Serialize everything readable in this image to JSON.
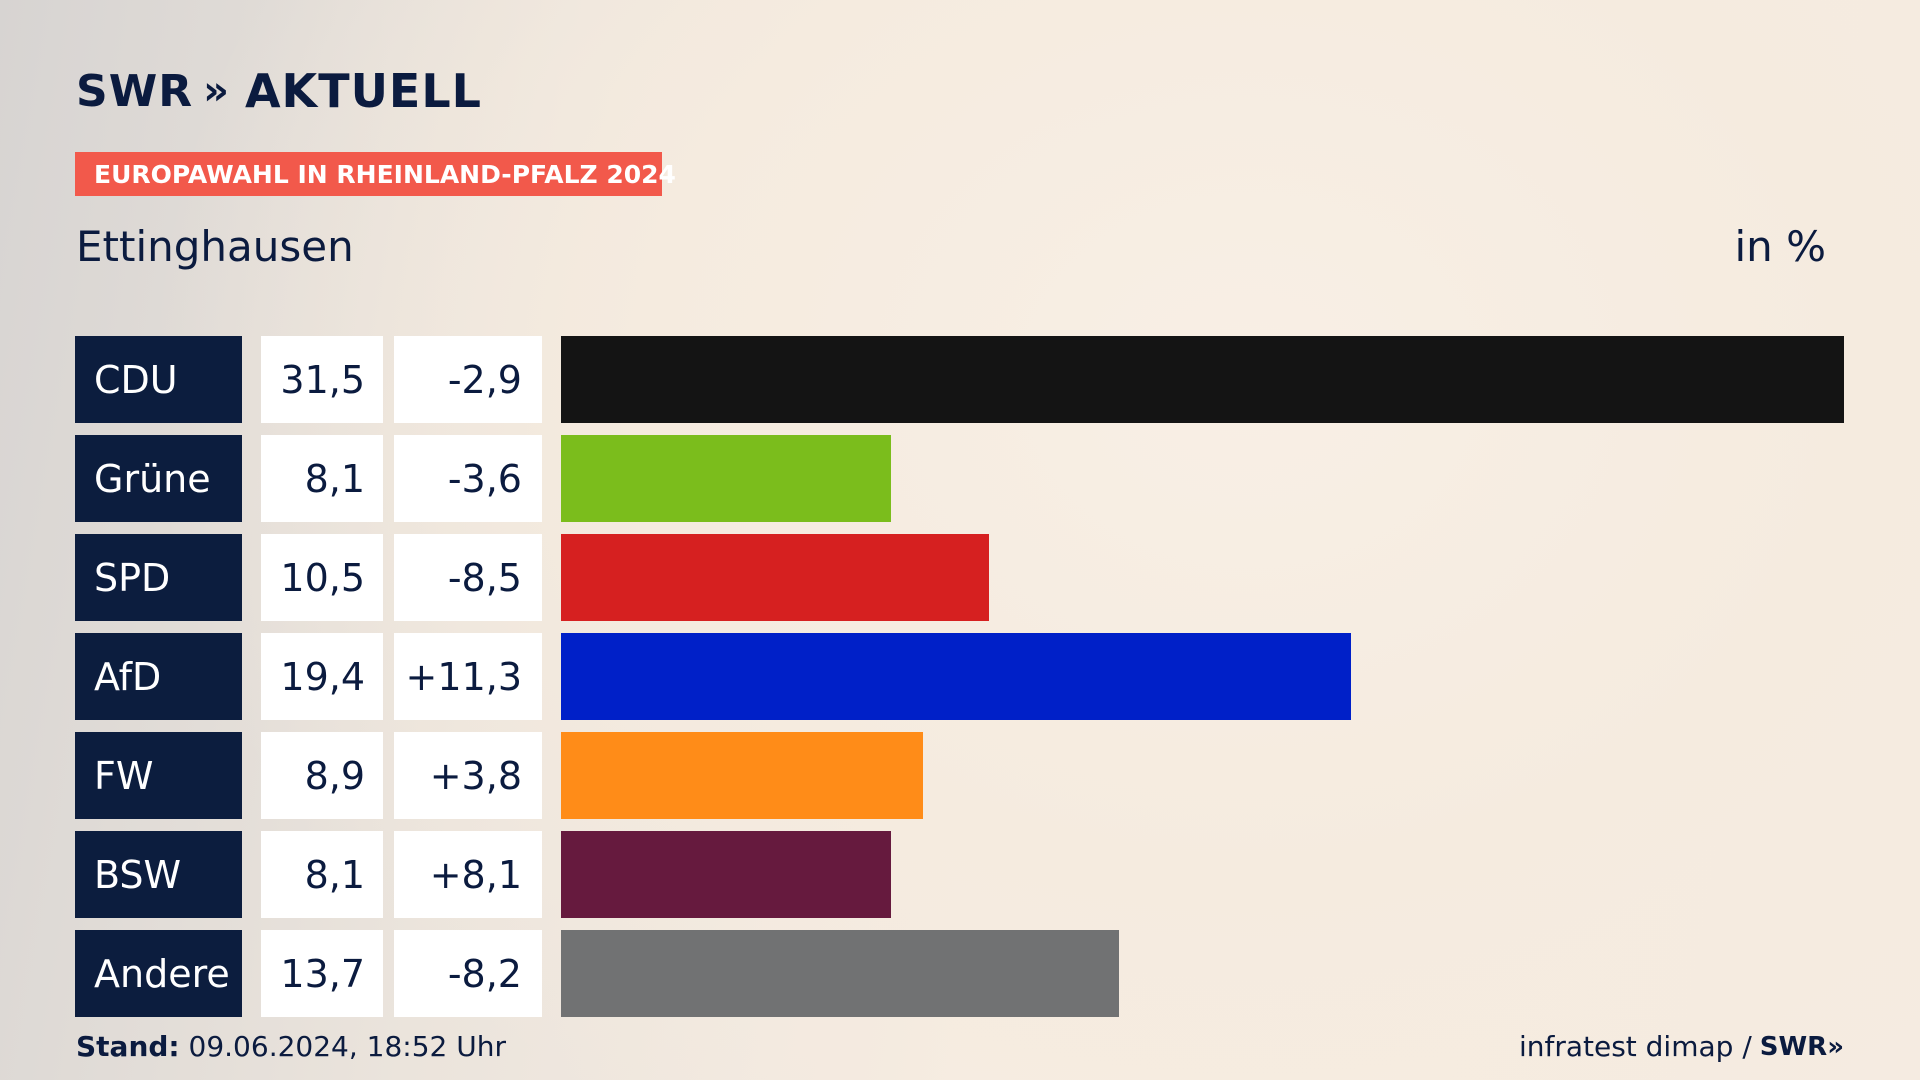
{
  "header": {
    "logo_text": "SWR",
    "logo_chevrons": "»",
    "logo_suffix": "AKTUELL",
    "badge": "EUROPAWAHL IN RHEINLAND-PFALZ 2024",
    "location": "Ettinghausen",
    "unit": "in %"
  },
  "footer": {
    "stand_label": "Stand:",
    "stand_value": "09.06.2024, 18:52 Uhr",
    "source": "infratest dimap /",
    "source_logo": "SWR»"
  },
  "chart_data": {
    "type": "bar",
    "orientation": "horizontal",
    "title": "Ettinghausen",
    "unit": "in %",
    "categories": [
      "CDU",
      "Grüne",
      "SPD",
      "AfD",
      "FW",
      "BSW",
      "Andere"
    ],
    "values": [
      31.5,
      8.1,
      10.5,
      19.4,
      8.9,
      8.1,
      13.7
    ],
    "value_labels": [
      "31,5",
      "8,1",
      "10,5",
      "19,4",
      "8,9",
      "8,1",
      "13,7"
    ],
    "change": [
      -2.9,
      -3.6,
      -8.5,
      11.3,
      3.8,
      8.1,
      -8.2
    ],
    "change_labels": [
      "-2,9",
      "-3,6",
      "-8,5",
      "+11,3",
      "+3,8",
      "+8,1",
      "-8,2"
    ],
    "colors": [
      "#141414",
      "#7bbd1c",
      "#d62020",
      "#0020c8",
      "#ff8c18",
      "#661a3e",
      "#717273"
    ],
    "xlim": [
      0,
      31.5
    ]
  }
}
